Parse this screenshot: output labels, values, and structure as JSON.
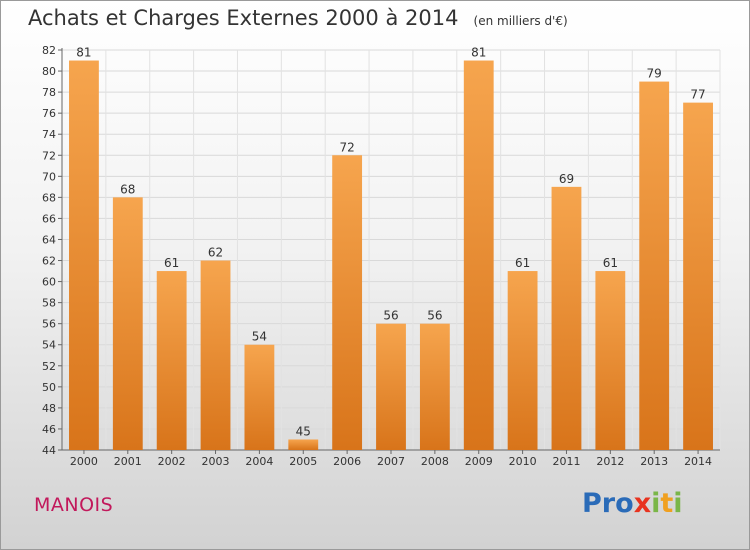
{
  "title": "Achats et Charges Externes 2000 à 2014",
  "subtitle": "(en milliers d'€)",
  "city": "MANOIS",
  "logo": {
    "letters": [
      "P",
      "r",
      "o",
      "x",
      "i",
      "t",
      "i"
    ],
    "colors": [
      "#2a6bb8",
      "#2a6bb8",
      "#2a6bb8",
      "#e8331f",
      "#7ab648",
      "#f0a020",
      "#7ab648"
    ]
  },
  "colors": {
    "bar_top": "#f6a54e",
    "bar_bottom": "#d8741a",
    "city": "#c2185b"
  },
  "chart_data": {
    "type": "bar",
    "title": "Achats et Charges Externes 2000 à 2014",
    "subtitle": "(en milliers d'€)",
    "categories": [
      "2000",
      "2001",
      "2002",
      "2003",
      "2004",
      "2005",
      "2006",
      "2007",
      "2008",
      "2009",
      "2010",
      "2011",
      "2012",
      "2013",
      "2014"
    ],
    "values": [
      81,
      68,
      61,
      62,
      54,
      45,
      72,
      56,
      56,
      81,
      61,
      69,
      61,
      79,
      77
    ],
    "ylim": [
      44,
      82
    ],
    "yticks": [
      44,
      46,
      48,
      50,
      52,
      54,
      56,
      58,
      60,
      62,
      64,
      66,
      68,
      70,
      72,
      74,
      76,
      78,
      80,
      82
    ],
    "grid": true,
    "legend": "none"
  }
}
